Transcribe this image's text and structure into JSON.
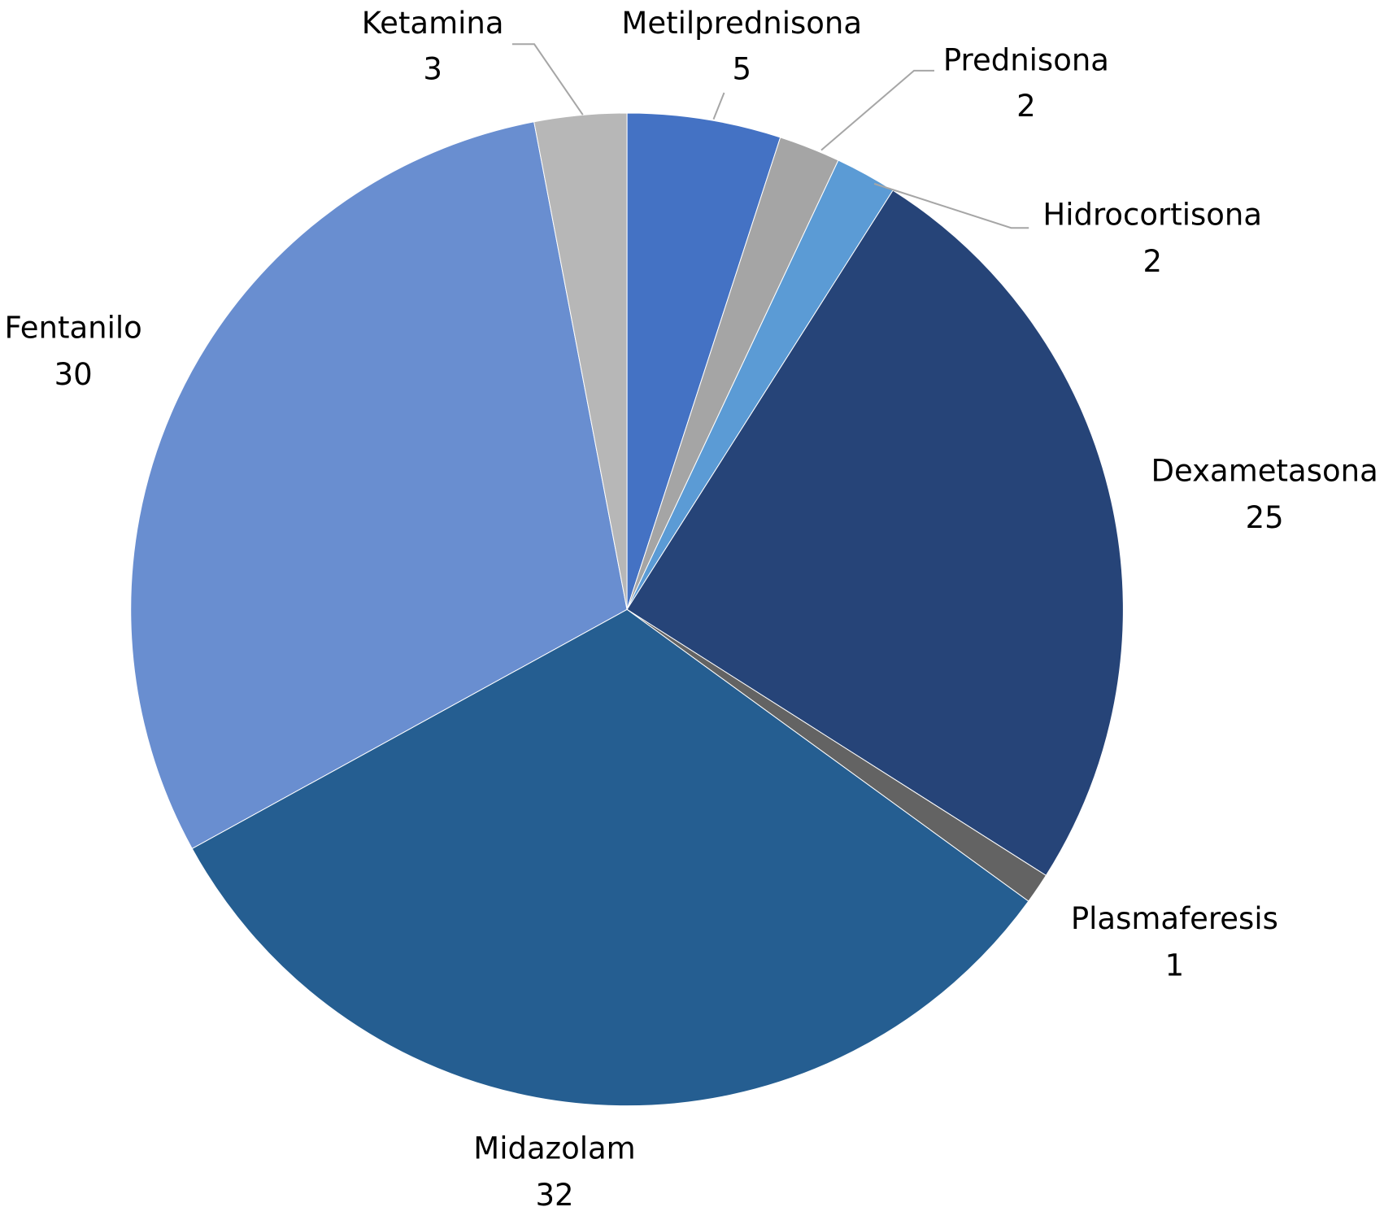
{
  "chart_data": {
    "type": "pie",
    "categories": [
      "Metilprednisona",
      "Prednisona",
      "Hidrocortisona",
      "Dexametasona",
      "Plasmaferesis",
      "Midazolam",
      "Fentanilo",
      "Ketamina"
    ],
    "values": [
      5,
      2,
      2,
      25,
      1,
      32,
      30,
      3
    ],
    "colors": [
      "#4472c4",
      "#a5a5a5",
      "#5b9bd5",
      "#264478",
      "#636363",
      "#255e91",
      "#698ed0",
      "#b7b7b7"
    ]
  }
}
